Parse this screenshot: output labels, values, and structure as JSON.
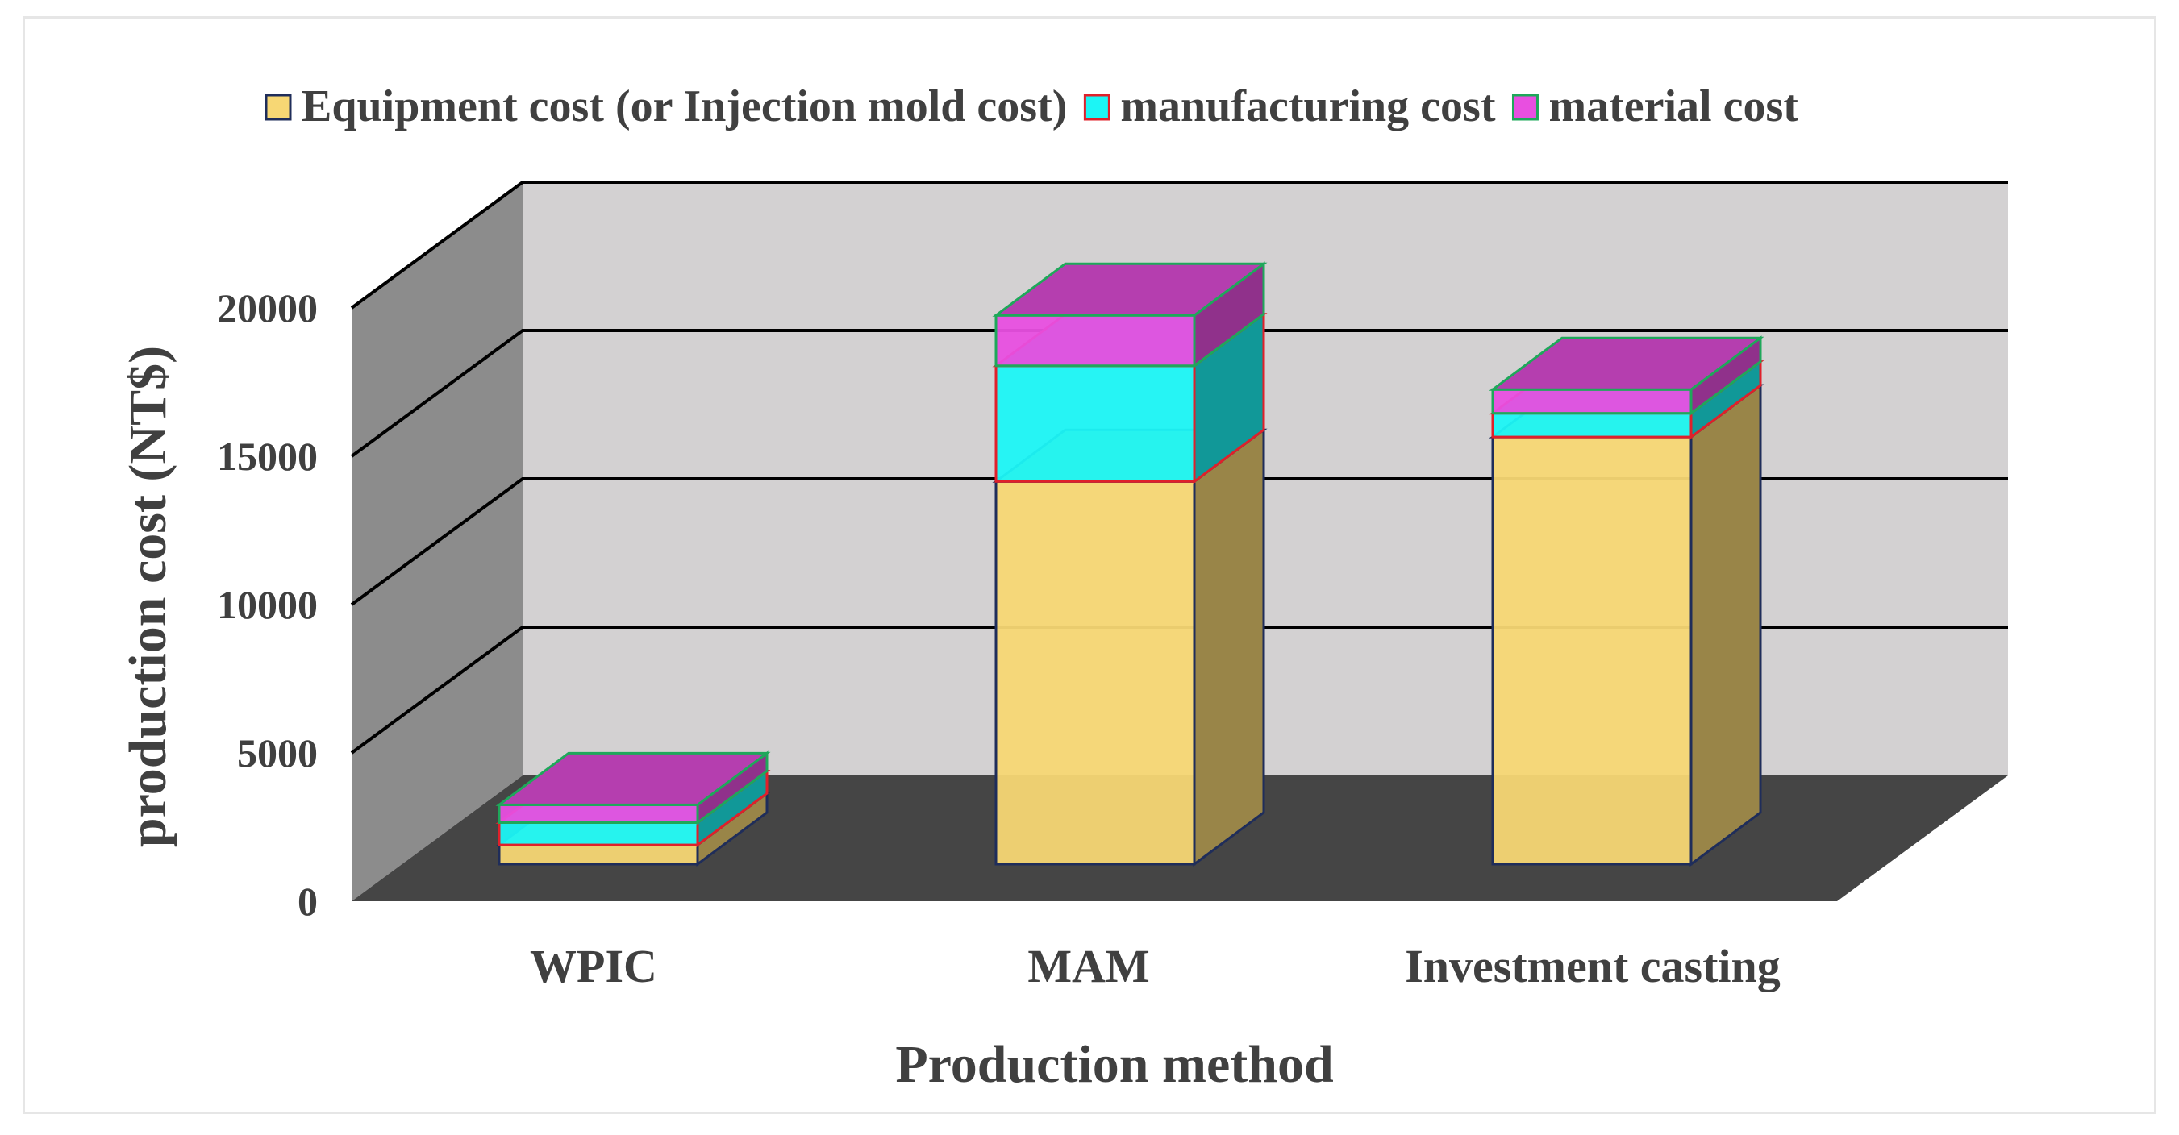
{
  "chart_data": {
    "type": "bar",
    "stacked": true,
    "three_d": true,
    "title": "",
    "xlabel": "Production method",
    "ylabel": "production cost (NT$)",
    "categories": [
      "WPIC",
      "MAM",
      "Investment casting"
    ],
    "series": [
      {
        "name": "Equipment cost (or Injection mold cost)",
        "values": [
          650,
          12900,
          14400
        ],
        "color": "#f7d774",
        "edge": "#1f2d5a"
      },
      {
        "name": "manufacturing cost",
        "values": [
          750,
          3900,
          800
        ],
        "color": "#1cf5f5",
        "edge": "#e0202a"
      },
      {
        "name": "material cost",
        "values": [
          600,
          1700,
          800
        ],
        "color": "#e84fe0",
        "edge": "#1ea85a"
      }
    ],
    "ylim": [
      0,
      20000
    ],
    "yticks": [
      0,
      5000,
      10000,
      15000,
      20000
    ],
    "ytick_labels": [
      "0",
      "5000",
      "10000",
      "15000",
      "20000"
    ],
    "grid": true,
    "legend_position": "top",
    "colors": {
      "back_wall": "#d3d1d2",
      "side_wall": "#8c8c8c",
      "floor": "#454545",
      "text": "#404040"
    }
  }
}
